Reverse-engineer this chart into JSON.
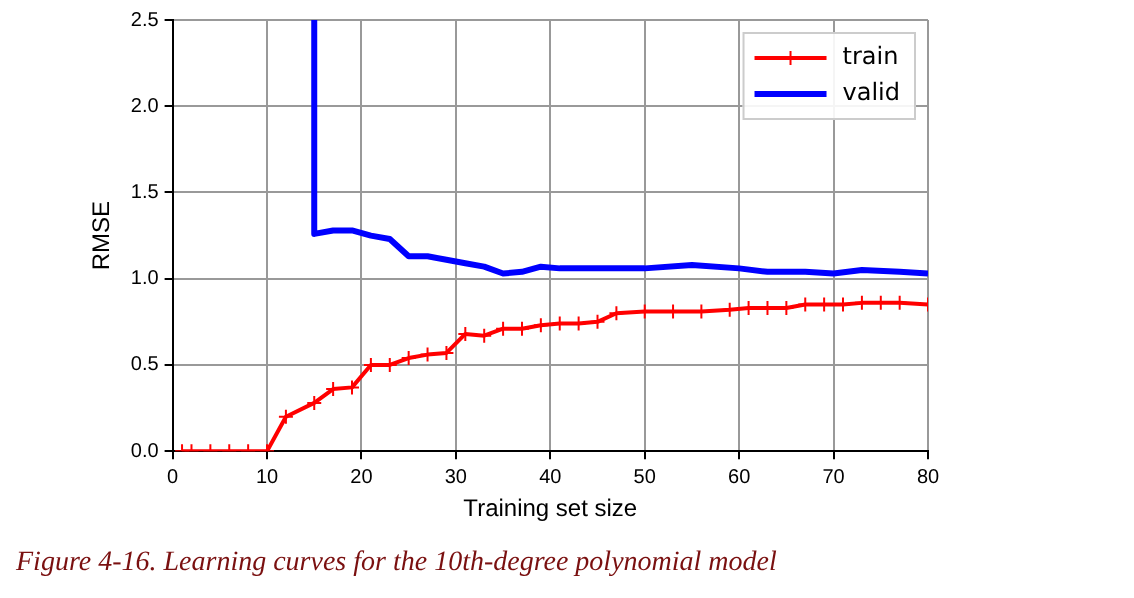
{
  "chart_data": {
    "type": "line",
    "xlabel": "Training set size",
    "ylabel": "RMSE",
    "annotations": [
      "Figure 4-16. Learning curves for the 10th-degree polynomial model"
    ],
    "xlim": [
      0,
      80
    ],
    "xticks": [
      0,
      10,
      20,
      30,
      40,
      50,
      60,
      70,
      80
    ],
    "ylim": [
      0,
      2.5
    ],
    "yticks": [
      {
        "value": 0,
        "label": "0.0"
      },
      0.5,
      {
        "value": 1,
        "label": "1.0"
      },
      1.5,
      {
        "value": 2,
        "label": "2.0"
      },
      2.5
    ],
    "grid": true,
    "legend": "top right",
    "series": [
      {
        "name": "train",
        "color": "#ff0000",
        "marker": "cross",
        "x": [
          1,
          2,
          4,
          6,
          8,
          10,
          12,
          15,
          17,
          19,
          21,
          23,
          25,
          27,
          29,
          31,
          33,
          35,
          37,
          39,
          41,
          43,
          45,
          47,
          50,
          53,
          56,
          59,
          61,
          63,
          65,
          67,
          69,
          71,
          73,
          75,
          77,
          80
        ],
        "values": [
          0,
          0,
          0,
          0,
          0,
          0,
          0.2,
          0.28,
          0.36,
          0.37,
          0.5,
          0.5,
          0.54,
          0.56,
          0.57,
          0.68,
          0.67,
          0.71,
          0.71,
          0.73,
          0.74,
          0.74,
          0.75,
          0.8,
          0.81,
          0.81,
          0.81,
          0.82,
          0.83,
          0.83,
          0.83,
          0.85,
          0.85,
          0.85,
          0.86,
          0.86,
          0.86,
          0.85
        ]
      },
      {
        "name": "valid",
        "color": "#0000ff",
        "marker": "none",
        "x": [
          15,
          15,
          17,
          19,
          21,
          23,
          25,
          27,
          29,
          31,
          33,
          35,
          37,
          39,
          41,
          45,
          50,
          55,
          60,
          63,
          67,
          70,
          73,
          77,
          80
        ],
        "values": [
          2.5,
          1.26,
          1.28,
          1.28,
          1.25,
          1.23,
          1.13,
          1.13,
          1.11,
          1.09,
          1.07,
          1.03,
          1.04,
          1.07,
          1.06,
          1.06,
          1.06,
          1.08,
          1.06,
          1.04,
          1.04,
          1.03,
          1.05,
          1.04,
          1.03
        ]
      }
    ]
  }
}
